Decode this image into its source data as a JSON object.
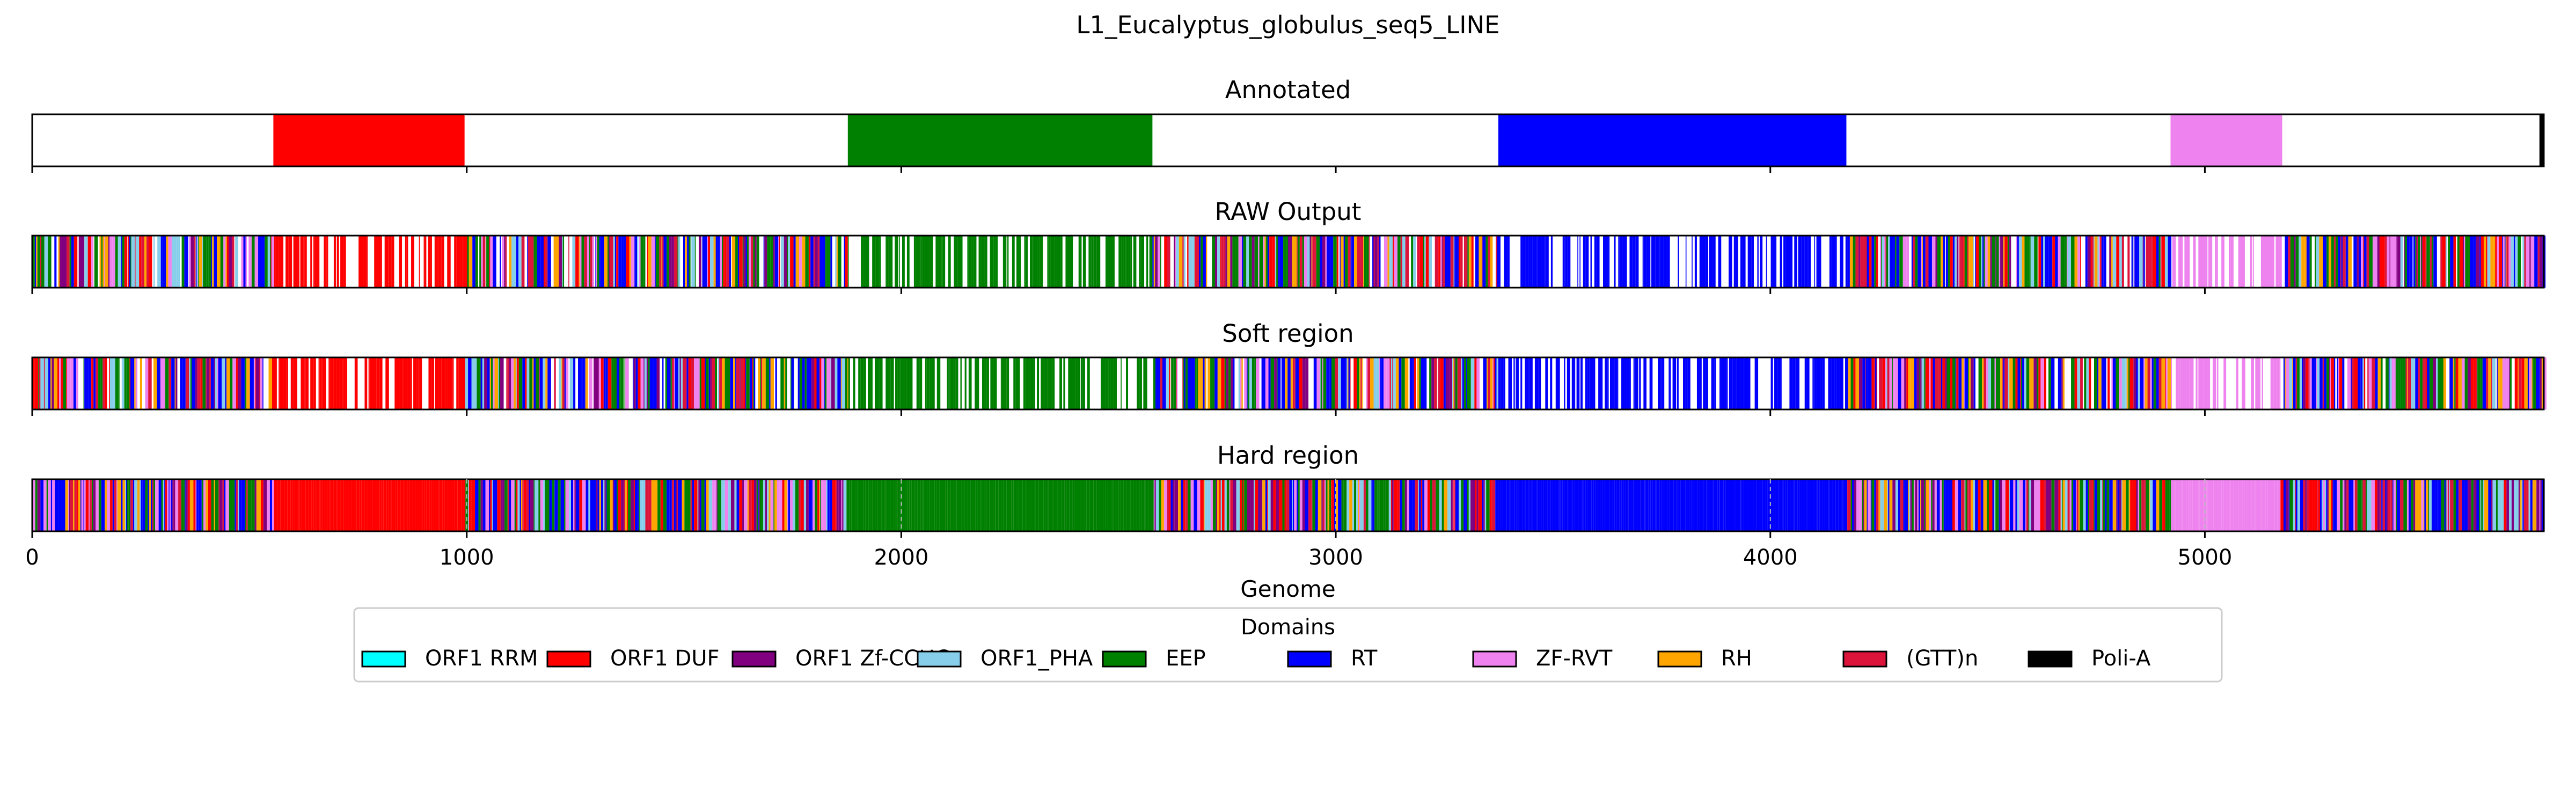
{
  "figure_title": "L1_Eucalyptus_globulus_seq5_LINE",
  "chart_data": {
    "type": "heatmap",
    "genome_length": 5780,
    "xlim": [
      0,
      5780
    ],
    "xticks": [
      0,
      1000,
      2000,
      3000,
      4000,
      5000
    ],
    "xlabel": "Genome",
    "tracks": [
      {
        "title": "Annotated",
        "mode": "solid",
        "segments": [
          {
            "domain": "ORF1 DUF",
            "start": 555,
            "end": 995
          },
          {
            "domain": "EEP",
            "start": 1877,
            "end": 2578
          },
          {
            "domain": "RT",
            "start": 3374,
            "end": 4175
          },
          {
            "domain": "ZF-RVT",
            "start": 4921,
            "end": 5178
          },
          {
            "domain": "Poli-A",
            "start": 5770,
            "end": 5780
          }
        ]
      },
      {
        "title": "RAW Output",
        "mode": "noisy",
        "segments": [
          {
            "domain": "ORF1 DUF",
            "start": 555,
            "end": 995
          },
          {
            "domain": "EEP",
            "start": 1877,
            "end": 2578
          },
          {
            "domain": "RT",
            "start": 3374,
            "end": 4175
          },
          {
            "domain": "ZF-RVT",
            "start": 4921,
            "end": 5178
          }
        ]
      },
      {
        "title": "Soft region",
        "mode": "noisy",
        "segments": [
          {
            "domain": "ORF1 DUF",
            "start": 555,
            "end": 995
          },
          {
            "domain": "EEP",
            "start": 1877,
            "end": 2578
          },
          {
            "domain": "RT",
            "start": 3374,
            "end": 4175
          },
          {
            "domain": "ZF-RVT",
            "start": 4921,
            "end": 5178
          }
        ]
      },
      {
        "title": "Hard region",
        "mode": "hard",
        "segments": [
          {
            "domain": "ORF1 DUF",
            "start": 555,
            "end": 995
          },
          {
            "domain": "EEP",
            "start": 1877,
            "end": 2578
          },
          {
            "domain": "RT",
            "start": 3374,
            "end": 4175
          },
          {
            "domain": "ZF-RVT",
            "start": 4921,
            "end": 5168
          }
        ]
      }
    ],
    "legend": {
      "title": "Domains",
      "placement": "bottom-center",
      "items": [
        {
          "label": "ORF1 RRM",
          "color": "#00ffff"
        },
        {
          "label": "ORF1 DUF",
          "color": "#ff0000"
        },
        {
          "label": "ORF1 Zf-CCHC",
          "color": "#800080"
        },
        {
          "label": "ORF1_PHA",
          "color": "#87ceeb"
        },
        {
          "label": "EEP",
          "color": "#008000"
        },
        {
          "label": "RT",
          "color": "#0000ff"
        },
        {
          "label": "ZF-RVT",
          "color": "#ee82ee"
        },
        {
          "label": "RH",
          "color": "#ffa500"
        },
        {
          "label": "(GTT)n",
          "color": "#dc143c"
        },
        {
          "label": "Poli-A",
          "color": "#000000"
        }
      ]
    }
  }
}
